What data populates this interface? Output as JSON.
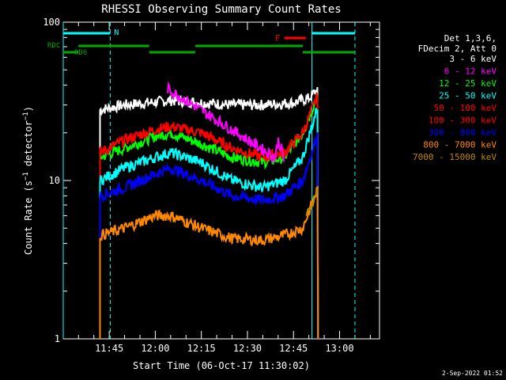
{
  "chart_data": {
    "type": "line",
    "title": "RHESSI Observing Summary Count Rates",
    "xlabel": "Start Time (06-Oct-17 11:30:02)",
    "ylabel": "Count Rate (s⁻¹ detector⁻¹)",
    "ylabel_parts": {
      "main": "Count Rate (s",
      "exp1": "−1",
      "mid": " detector",
      "exp2": "−1",
      "end": ")"
    },
    "y_scale": "log",
    "ylim": [
      1,
      100
    ],
    "xlim": [
      "11:30:02",
      "13:13:00"
    ],
    "y_tick_labels": [
      "1",
      "10",
      "100"
    ],
    "x_tick_labels": [
      "11:45",
      "12:00",
      "12:15",
      "12:30",
      "12:45",
      "13:00"
    ],
    "legend": {
      "placement": "right",
      "header_lines": [
        "Det 1,3,6,",
        "FDecim 2, Att 0"
      ],
      "entries": [
        {
          "label": "3 - 6 keV",
          "color": "#ffffff"
        },
        {
          "label": "6 - 12 keV",
          "color": "#ff00ff"
        },
        {
          "label": "12 - 25 keV",
          "color": "#00ff00"
        },
        {
          "label": "25 - 50 keV",
          "color": "#00ffff"
        },
        {
          "label": "50 - 100 keV",
          "color": "#ff0000"
        },
        {
          "label": "100 - 300 keV",
          "color": "#ff0000"
        },
        {
          "label": "300 - 800 keV",
          "color": "#0000ff"
        },
        {
          "label": "800 - 7000 keV",
          "color": "#ff8800"
        },
        {
          "label": "7000 - 15000 keV",
          "color": "#bb8800"
        }
      ]
    },
    "flags": {
      "night_label": "N",
      "flare_label": "F",
      "rdc_label": "RDC",
      "rd6_label": "RD6",
      "night_segments": [
        [
          "11:30:02",
          "11:45:20"
        ],
        [
          "12:51:00",
          "13:05:00"
        ]
      ],
      "flare_segment": [
        "12:42:00",
        "12:49:00"
      ],
      "rdc_segments": [
        [
          "11:35:00",
          "11:58:00"
        ],
        [
          "12:13:00",
          "12:48:00"
        ]
      ],
      "rd6_segments": [
        [
          "11:30:02",
          "11:35:00"
        ],
        [
          "11:58:00",
          "12:13:00"
        ],
        [
          "12:48:00",
          "13:05:00"
        ]
      ]
    },
    "vertical_markers": {
      "solid_cyan": [
        "11:30:02",
        "12:51:00"
      ],
      "dashed_cyan": [
        "11:45:20",
        "13:05:00"
      ]
    },
    "series": [
      {
        "name": "3 - 6 keV",
        "color": "#ffffff",
        "x": [
          "11:42",
          "11:50",
          "11:58",
          "12:05",
          "12:15",
          "12:25",
          "12:35",
          "12:45",
          "12:50",
          "12:53"
        ],
        "values": [
          28,
          30,
          31,
          32,
          31,
          30,
          30,
          31,
          33,
          38
        ]
      },
      {
        "name": "12 - 25 keV",
        "color": "#00ff00",
        "x": [
          "11:42",
          "11:50",
          "12:00",
          "12:05",
          "12:15",
          "12:25",
          "12:35",
          "12:42",
          "12:48",
          "12:53"
        ],
        "values": [
          14,
          16,
          19,
          20,
          17,
          14,
          13,
          14,
          20,
          35
        ]
      },
      {
        "name": "50 - 100 keV",
        "color": "#ff0000",
        "x": [
          "11:42",
          "11:50",
          "12:00",
          "12:05",
          "12:15",
          "12:25",
          "12:35",
          "12:42",
          "12:48",
          "12:53"
        ],
        "values": [
          15,
          18,
          21,
          22,
          20,
          16,
          14,
          15,
          20,
          35
        ]
      },
      {
        "name": "25 - 50 keV",
        "color": "#00ffff",
        "x": [
          "11:42",
          "11:50",
          "12:00",
          "12:05",
          "12:15",
          "12:25",
          "12:35",
          "12:42",
          "12:48",
          "12:53"
        ],
        "values": [
          10,
          12,
          14,
          15,
          13,
          10,
          9,
          10,
          14,
          30
        ]
      },
      {
        "name": "300 - 800 keV",
        "color": "#0000ff",
        "x": [
          "11:42",
          "11:50",
          "12:00",
          "12:05",
          "12:15",
          "12:25",
          "12:35",
          "12:42",
          "12:48",
          "12:53"
        ],
        "values": [
          8,
          9,
          11,
          12,
          10,
          8,
          7.5,
          8,
          10,
          20
        ]
      },
      {
        "name": "800 - 7000 keV",
        "color": "#ff8800",
        "x": [
          "11:42",
          "11:50",
          "12:00",
          "12:05",
          "12:15",
          "12:25",
          "12:35",
          "12:42",
          "12:48",
          "12:53"
        ],
        "values": [
          4.5,
          5,
          6,
          6,
          5,
          4.3,
          4.2,
          4.5,
          5,
          9
        ]
      },
      {
        "name": "6 - 12 keV",
        "color": "#ff00ff",
        "x": [
          "12:04",
          "12:39",
          "12:40",
          "12:41",
          "12:42"
        ],
        "values": [
          38,
          14,
          18,
          16,
          13
        ]
      },
      {
        "name": "7000 - 15000 keV",
        "color": "#bb8800",
        "x": [
          "12:49",
          "12:51",
          "12:53"
        ],
        "values": [
          6,
          7,
          9
        ]
      }
    ]
  },
  "footer": {
    "timestamp": "2-Sep-2022 01:52"
  }
}
